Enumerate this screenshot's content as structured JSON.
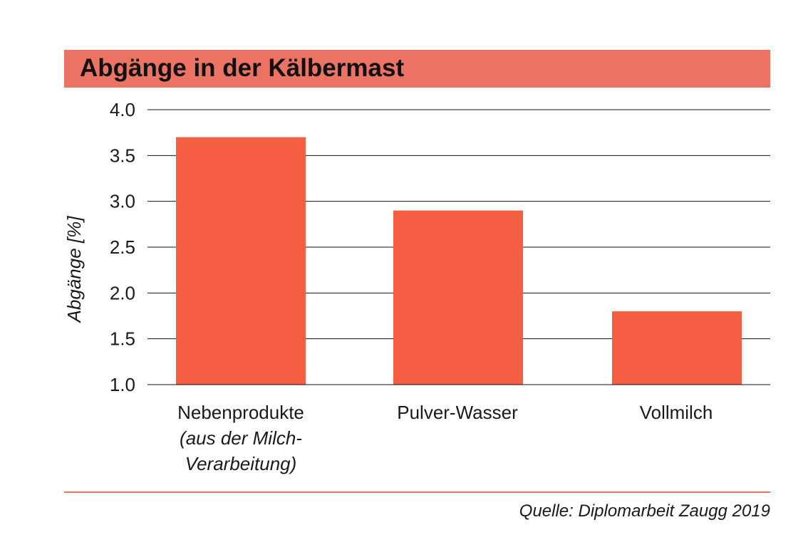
{
  "header": {
    "title": "Abgänge in der Kälbermast"
  },
  "chart_data": {
    "type": "bar",
    "title": "Abgänge in der Kälbermast",
    "categories": [
      "Nebenprodukte",
      "Pulver-Wasser",
      "Vollmilch"
    ],
    "category_sublabels": [
      "(aus der Milch-",
      "",
      ""
    ],
    "category_sublabels2": [
      "Verarbeitung)",
      "",
      ""
    ],
    "values": [
      3.7,
      2.9,
      1.8
    ],
    "ylabel": "Abgänge [%]",
    "xlabel": "",
    "ylim": [
      1.0,
      4.0
    ],
    "yticks": [
      "1.0",
      "1.5",
      "2.0",
      "2.5",
      "3.0",
      "3.5",
      "4.0"
    ],
    "grid": true,
    "bar_color": "#f55e42"
  },
  "footer": {
    "source": "Quelle: Diplomarbeit Zaugg 2019"
  },
  "colors": {
    "title_bar": "#ec7263",
    "rule": "#ec7263"
  }
}
